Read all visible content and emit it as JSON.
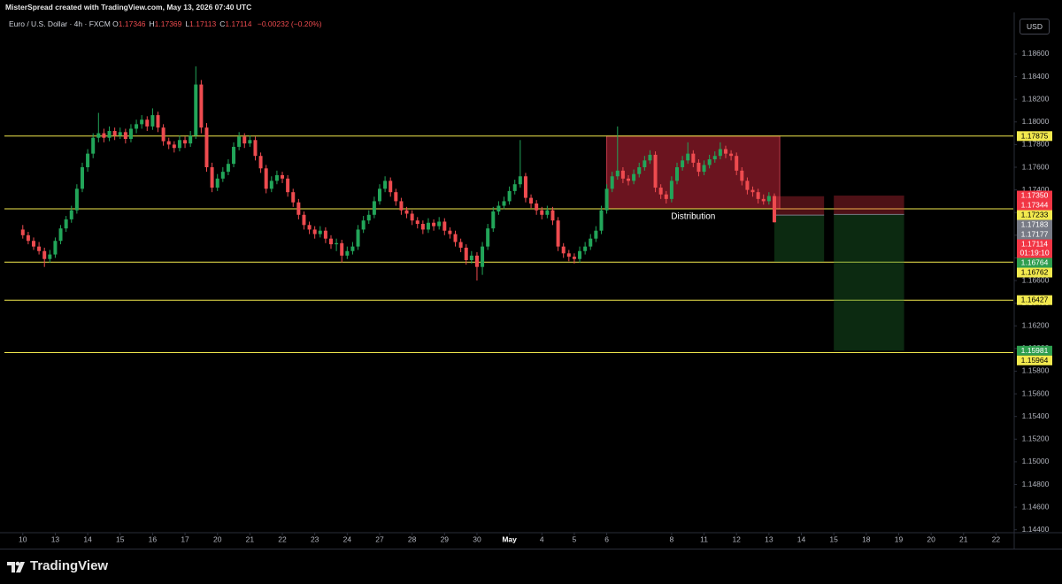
{
  "header": {
    "credit": "MisterSpread created with TradingView.com, May 13, 2026 07:40 UTC",
    "symbol": "Euro / U.S. Dollar · 4h · FXCM",
    "ohlc": [
      {
        "key": "O",
        "value": "1.17346"
      },
      {
        "key": "H",
        "value": "1.17369"
      },
      {
        "key": "L",
        "value": "1.17113"
      },
      {
        "key": "C",
        "value": "1.17114"
      }
    ],
    "change": "−0.00232 (−0.20%)",
    "currency": "USD"
  },
  "footer": {
    "brand": "TradingView"
  },
  "chart_data": {
    "type": "candlestick",
    "up_color": "#22a559",
    "down_color": "#ee4b4f",
    "grid": false,
    "xlim": [
      -3.4,
      183.2
    ],
    "ylim": [
      1.1439,
      1.1892
    ],
    "xticks": [
      {
        "value": 0,
        "label": "10"
      },
      {
        "value": 6,
        "label": "13"
      },
      {
        "value": 12,
        "label": "14"
      },
      {
        "value": 18,
        "label": "15"
      },
      {
        "value": 24,
        "label": "16"
      },
      {
        "value": 30,
        "label": "17"
      },
      {
        "value": 36,
        "label": "20"
      },
      {
        "value": 42,
        "label": "21"
      },
      {
        "value": 48,
        "label": "22"
      },
      {
        "value": 54,
        "label": "23"
      },
      {
        "value": 60,
        "label": "24"
      },
      {
        "value": 66,
        "label": "27"
      },
      {
        "value": 72,
        "label": "28"
      },
      {
        "value": 78,
        "label": "29"
      },
      {
        "value": 84,
        "label": "30"
      },
      {
        "value": 90,
        "label": "May"
      },
      {
        "value": 96,
        "label": "4"
      },
      {
        "value": 102,
        "label": "5"
      },
      {
        "value": 108,
        "label": "6"
      },
      {
        "value": 120,
        "label": "8"
      },
      {
        "value": 126,
        "label": "11"
      },
      {
        "value": 132,
        "label": "12"
      },
      {
        "value": 138,
        "label": "13"
      },
      {
        "value": 144,
        "label": "14"
      },
      {
        "value": 150,
        "label": "15"
      },
      {
        "value": 156,
        "label": "18"
      },
      {
        "value": 162,
        "label": "19"
      },
      {
        "value": 168,
        "label": "20"
      },
      {
        "value": 174,
        "label": "21"
      },
      {
        "value": 180,
        "label": "22"
      }
    ],
    "yticks": [
      {
        "value": 1.186,
        "label": "1.18600"
      },
      {
        "value": 1.184,
        "label": "1.18400"
      },
      {
        "value": 1.182,
        "label": "1.18200"
      },
      {
        "value": 1.18,
        "label": "1.18000"
      },
      {
        "value": 1.178,
        "label": "1.17800"
      },
      {
        "value": 1.176,
        "label": "1.17600"
      },
      {
        "value": 1.174,
        "label": "1.17400"
      },
      {
        "value": 1.172,
        "label": "1.17200"
      },
      {
        "value": 1.17,
        "label": "1.17000"
      },
      {
        "value": 1.168,
        "label": "1.16800"
      },
      {
        "value": 1.166,
        "label": "1.16600"
      },
      {
        "value": 1.164,
        "label": "1.16400"
      },
      {
        "value": 1.162,
        "label": "1.16200"
      },
      {
        "value": 1.16,
        "label": "1.16000"
      },
      {
        "value": 1.158,
        "label": "1.15800"
      },
      {
        "value": 1.156,
        "label": "1.15600"
      },
      {
        "value": 1.154,
        "label": "1.15400"
      },
      {
        "value": 1.152,
        "label": "1.15200"
      },
      {
        "value": 1.15,
        "label": "1.15000"
      },
      {
        "value": 1.148,
        "label": "1.14800"
      },
      {
        "value": 1.146,
        "label": "1.14600"
      },
      {
        "value": 1.144,
        "label": "1.14400"
      }
    ],
    "hline_color": "#f2e94e",
    "hlines": [
      1.17875,
      1.17233,
      1.16762,
      1.16427,
      1.15964
    ],
    "zones": [
      {
        "x": [
          108,
          140
        ],
        "y": [
          1.17233,
          1.17875
        ],
        "label": "Distribution"
      }
    ],
    "positions": [
      {
        "x": [
          139,
          148.2
        ],
        "stop": 1.17344,
        "entry": 1.17177,
        "target": 1.16764
      },
      {
        "x": [
          150,
          163
        ],
        "stop": {
          "value": 1.1735,
          "label": "1.17350"
        },
        "entry": 1.17183,
        "target": 1.15981
      }
    ],
    "countdown": "01:19:10",
    "candles": [
      [
        1.1705,
        1.1709,
        1.1697,
        1.17
      ],
      [
        1.17,
        1.1703,
        1.1692,
        1.1695
      ],
      [
        1.1695,
        1.1698,
        1.1687,
        1.169
      ],
      [
        1.169,
        1.1694,
        1.1683,
        1.1686
      ],
      [
        1.1686,
        1.1689,
        1.1672,
        1.1679
      ],
      [
        1.1679,
        1.1687,
        1.1676,
        1.1683
      ],
      [
        1.1683,
        1.1698,
        1.168,
        1.1695
      ],
      [
        1.1695,
        1.1709,
        1.1692,
        1.1706
      ],
      [
        1.1706,
        1.1717,
        1.1703,
        1.1714
      ],
      [
        1.1714,
        1.1726,
        1.1711,
        1.1722
      ],
      [
        1.1722,
        1.1745,
        1.1719,
        1.1741
      ],
      [
        1.1741,
        1.1764,
        1.1738,
        1.176
      ],
      [
        1.176,
        1.1776,
        1.1756,
        1.1772
      ],
      [
        1.1772,
        1.179,
        1.1768,
        1.1786
      ],
      [
        1.1786,
        1.1808,
        1.1782,
        1.179
      ],
      [
        1.179,
        1.1794,
        1.1782,
        1.1786
      ],
      [
        1.1786,
        1.1796,
        1.1783,
        1.1792
      ],
      [
        1.1792,
        1.1795,
        1.1784,
        1.1788
      ],
      [
        1.1788,
        1.1795,
        1.1785,
        1.1791
      ],
      [
        1.1791,
        1.1794,
        1.1781,
        1.1785
      ],
      [
        1.1785,
        1.1798,
        1.1782,
        1.1794
      ],
      [
        1.1794,
        1.1802,
        1.179,
        1.1798
      ],
      [
        1.1798,
        1.1806,
        1.1794,
        1.1802
      ],
      [
        1.1802,
        1.1805,
        1.1792,
        1.1796
      ],
      [
        1.1796,
        1.1812,
        1.1793,
        1.1806
      ],
      [
        1.1806,
        1.1809,
        1.1791,
        1.1795
      ],
      [
        1.1795,
        1.1798,
        1.1779,
        1.1783
      ],
      [
        1.1783,
        1.1786,
        1.1776,
        1.178
      ],
      [
        1.178,
        1.1783,
        1.1773,
        1.1777
      ],
      [
        1.1777,
        1.1788,
        1.1774,
        1.1784
      ],
      [
        1.1784,
        1.1787,
        1.1777,
        1.1781
      ],
      [
        1.1781,
        1.1792,
        1.1778,
        1.1788
      ],
      [
        1.1788,
        1.1849,
        1.1785,
        1.1833
      ],
      [
        1.1833,
        1.1837,
        1.179,
        1.1795
      ],
      [
        1.1795,
        1.1799,
        1.1756,
        1.176
      ],
      [
        1.176,
        1.1764,
        1.1738,
        1.1742
      ],
      [
        1.1742,
        1.1754,
        1.1739,
        1.175
      ],
      [
        1.175,
        1.176,
        1.1747,
        1.1756
      ],
      [
        1.1756,
        1.1767,
        1.1753,
        1.1763
      ],
      [
        1.1763,
        1.1782,
        1.176,
        1.1778
      ],
      [
        1.1778,
        1.1791,
        1.1775,
        1.1787
      ],
      [
        1.1787,
        1.179,
        1.1777,
        1.1781
      ],
      [
        1.1781,
        1.1788,
        1.1778,
        1.1784
      ],
      [
        1.1784,
        1.1787,
        1.1766,
        1.177
      ],
      [
        1.177,
        1.1773,
        1.1755,
        1.1759
      ],
      [
        1.1759,
        1.1762,
        1.1737,
        1.1741
      ],
      [
        1.1741,
        1.1752,
        1.1738,
        1.1748
      ],
      [
        1.1748,
        1.1757,
        1.1745,
        1.1753
      ],
      [
        1.1753,
        1.1756,
        1.1746,
        1.175
      ],
      [
        1.175,
        1.1753,
        1.1734,
        1.1738
      ],
      [
        1.1738,
        1.1741,
        1.1725,
        1.1729
      ],
      [
        1.1729,
        1.1732,
        1.1714,
        1.1718
      ],
      [
        1.1718,
        1.1721,
        1.1705,
        1.1709
      ],
      [
        1.1709,
        1.1712,
        1.1701,
        1.1705
      ],
      [
        1.1705,
        1.1708,
        1.1697,
        1.1701
      ],
      [
        1.1701,
        1.1708,
        1.1698,
        1.1704
      ],
      [
        1.1704,
        1.1707,
        1.1693,
        1.1697
      ],
      [
        1.1697,
        1.17,
        1.1688,
        1.1692
      ],
      [
        1.1692,
        1.1697,
        1.1686,
        1.1693
      ],
      [
        1.1693,
        1.1696,
        1.1676,
        1.1682
      ],
      [
        1.1682,
        1.169,
        1.1679,
        1.1686
      ],
      [
        1.1686,
        1.1694,
        1.1683,
        1.169
      ],
      [
        1.169,
        1.1709,
        1.1687,
        1.1705
      ],
      [
        1.1705,
        1.1717,
        1.1702,
        1.1713
      ],
      [
        1.1713,
        1.1722,
        1.171,
        1.1718
      ],
      [
        1.1718,
        1.1734,
        1.1715,
        1.173
      ],
      [
        1.173,
        1.1745,
        1.1727,
        1.1741
      ],
      [
        1.1741,
        1.1752,
        1.1738,
        1.1748
      ],
      [
        1.1748,
        1.1751,
        1.1734,
        1.1738
      ],
      [
        1.1738,
        1.1741,
        1.1726,
        1.173
      ],
      [
        1.173,
        1.1733,
        1.1718,
        1.1722
      ],
      [
        1.1722,
        1.1725,
        1.1715,
        1.1719
      ],
      [
        1.1719,
        1.1722,
        1.1709,
        1.1713
      ],
      [
        1.1713,
        1.1716,
        1.1706,
        1.171
      ],
      [
        1.171,
        1.1713,
        1.1701,
        1.1705
      ],
      [
        1.1705,
        1.1715,
        1.1702,
        1.1711
      ],
      [
        1.1711,
        1.1714,
        1.1704,
        1.1708
      ],
      [
        1.1708,
        1.1716,
        1.1705,
        1.1712
      ],
      [
        1.1712,
        1.1715,
        1.17,
        1.1704
      ],
      [
        1.1704,
        1.1707,
        1.1697,
        1.1701
      ],
      [
        1.1701,
        1.1704,
        1.169,
        1.1694
      ],
      [
        1.1694,
        1.1697,
        1.1685,
        1.1689
      ],
      [
        1.1689,
        1.1692,
        1.1674,
        1.1678
      ],
      [
        1.1678,
        1.1686,
        1.1675,
        1.1682
      ],
      [
        1.1682,
        1.1685,
        1.166,
        1.1672
      ],
      [
        1.1672,
        1.1694,
        1.1665,
        1.169
      ],
      [
        1.169,
        1.171,
        1.1687,
        1.1706
      ],
      [
        1.1706,
        1.1725,
        1.1703,
        1.1721
      ],
      [
        1.1721,
        1.173,
        1.1718,
        1.1726
      ],
      [
        1.1726,
        1.1734,
        1.1723,
        1.173
      ],
      [
        1.173,
        1.1743,
        1.1727,
        1.1739
      ],
      [
        1.1739,
        1.1749,
        1.1736,
        1.1745
      ],
      [
        1.1745,
        1.1784,
        1.1742,
        1.1752
      ],
      [
        1.1752,
        1.1755,
        1.1729,
        1.1733
      ],
      [
        1.1733,
        1.1736,
        1.1724,
        1.1728
      ],
      [
        1.1728,
        1.1731,
        1.1718,
        1.1722
      ],
      [
        1.1722,
        1.1725,
        1.1714,
        1.1718
      ],
      [
        1.1718,
        1.1726,
        1.1715,
        1.1722
      ],
      [
        1.1722,
        1.1725,
        1.1709,
        1.1713
      ],
      [
        1.1713,
        1.1716,
        1.1686,
        1.169
      ],
      [
        1.169,
        1.1693,
        1.168,
        1.1684
      ],
      [
        1.1684,
        1.1687,
        1.1677,
        1.1681
      ],
      [
        1.1681,
        1.1684,
        1.1675,
        1.1679
      ],
      [
        1.1679,
        1.169,
        1.1676,
        1.1686
      ],
      [
        1.1686,
        1.1694,
        1.1683,
        1.169
      ],
      [
        1.169,
        1.1701,
        1.1687,
        1.1697
      ],
      [
        1.1697,
        1.1708,
        1.1694,
        1.1704
      ],
      [
        1.1704,
        1.1726,
        1.1701,
        1.1722
      ],
      [
        1.1722,
        1.1745,
        1.1719,
        1.1741
      ],
      [
        1.1741,
        1.1756,
        1.1738,
        1.1752
      ],
      [
        1.1752,
        1.1796,
        1.1749,
        1.1757
      ],
      [
        1.1757,
        1.176,
        1.1746,
        1.175
      ],
      [
        1.175,
        1.1753,
        1.1744,
        1.1748
      ],
      [
        1.1748,
        1.1758,
        1.1745,
        1.1754
      ],
      [
        1.1754,
        1.1764,
        1.1751,
        1.176
      ],
      [
        1.176,
        1.177,
        1.1757,
        1.1766
      ],
      [
        1.1766,
        1.1775,
        1.1763,
        1.1771
      ],
      [
        1.1771,
        1.1774,
        1.1738,
        1.1742
      ],
      [
        1.1742,
        1.1745,
        1.1732,
        1.1736
      ],
      [
        1.1736,
        1.1739,
        1.1728,
        1.1732
      ],
      [
        1.1732,
        1.1752,
        1.1729,
        1.1748
      ],
      [
        1.1748,
        1.1764,
        1.1745,
        1.176
      ],
      [
        1.176,
        1.177,
        1.1757,
        1.1766
      ],
      [
        1.1766,
        1.1782,
        1.1763,
        1.1772
      ],
      [
        1.1772,
        1.1775,
        1.176,
        1.1764
      ],
      [
        1.1764,
        1.1767,
        1.1752,
        1.1756
      ],
      [
        1.1756,
        1.1766,
        1.1753,
        1.1762
      ],
      [
        1.1762,
        1.1771,
        1.1759,
        1.1767
      ],
      [
        1.1767,
        1.1774,
        1.1764,
        1.177
      ],
      [
        1.177,
        1.1782,
        1.1767,
        1.1776
      ],
      [
        1.1776,
        1.1779,
        1.1768,
        1.1772
      ],
      [
        1.1772,
        1.1775,
        1.1766,
        1.177
      ],
      [
        1.177,
        1.1773,
        1.1753,
        1.1757
      ],
      [
        1.1757,
        1.176,
        1.1744,
        1.1748
      ],
      [
        1.1748,
        1.1751,
        1.1736,
        1.174
      ],
      [
        1.174,
        1.1743,
        1.1734,
        1.1738
      ],
      [
        1.1738,
        1.1741,
        1.1728,
        1.1732
      ],
      [
        1.1732,
        1.1736,
        1.1727,
        1.173
      ],
      [
        1.173,
        1.1738,
        1.1727,
        1.17346
      ],
      [
        1.17346,
        1.17369,
        1.17113,
        1.17114
      ]
    ]
  }
}
